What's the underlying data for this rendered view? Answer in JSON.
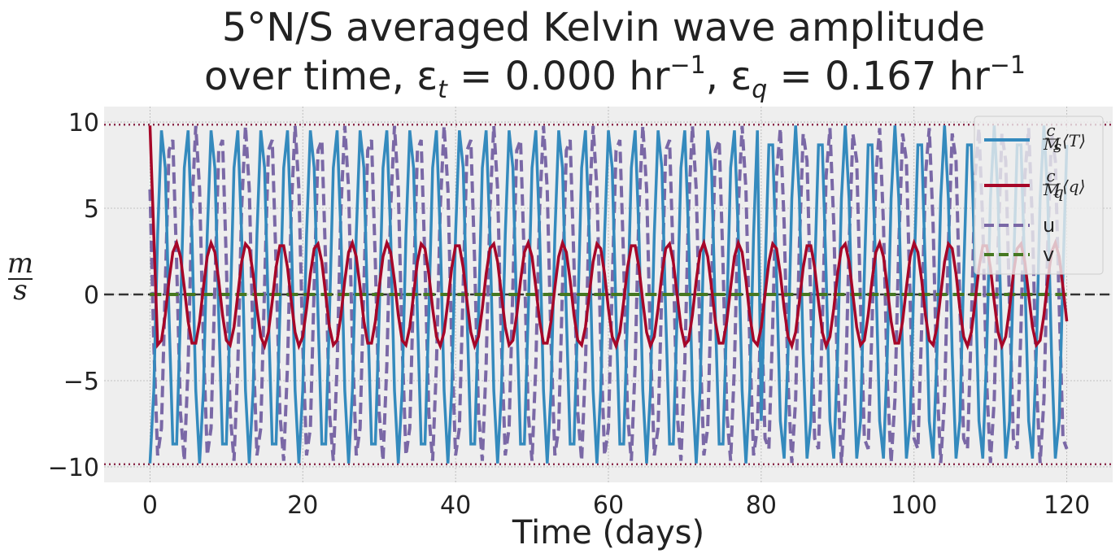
{
  "chart_data": {
    "type": "line",
    "title_line1": "5°N/S averaged Kelvin wave amplitude",
    "title_line2_prefix": "over time, ε",
    "title_eps_t_sub": "t",
    "title_eps_t_value": " = 0.000 hr",
    "title_eps_sep": ",  ε",
    "title_eps_q_sub": "q",
    "title_eps_q_value": " = 0.167 hr",
    "title_exp": "−1",
    "xlabel": "Time (days)",
    "ylabel_num": "m",
    "ylabel_den": "s",
    "xlim": [
      -6,
      126
    ],
    "ylim": [
      -10.9,
      10.9
    ],
    "xticks": [
      0,
      20,
      40,
      60,
      80,
      100,
      120
    ],
    "xtick_labels": [
      "0",
      "20",
      "40",
      "60",
      "80",
      "100",
      "120"
    ],
    "yticks": [
      -10,
      -5,
      0,
      5,
      10
    ],
    "ytick_labels": [
      "−10",
      "−5",
      "0",
      "5",
      "10"
    ],
    "grid": true,
    "legend_position": "top-right",
    "reference_lines": {
      "zero": 0,
      "upper_dotted": 9.85,
      "lower_dotted": -9.85,
      "zero_color": "#333333",
      "dotted_color": "#8b2a4a"
    },
    "series": [
      {
        "name": "c/Mₛ⟨T⟩",
        "color": "#348abd",
        "style": "solid",
        "amplitude": 9.8,
        "period_days": 3.25,
        "x_start": 0,
        "x_end": 120,
        "phase_note": "starts at -9.8, phase jump near day 80"
      },
      {
        "name": "c/M_q⟨q⟩",
        "color": "#a60628",
        "style": "solid",
        "amplitude": 3.0,
        "period_days": 4.6,
        "x_start": 0,
        "x_end": 120,
        "initial_value": 9.8,
        "final_value": -1.6
      },
      {
        "name": "u",
        "color": "#7a68a6",
        "style": "dashed",
        "amplitude": 9.8,
        "period_days": 3.25,
        "x_start": 0,
        "x_end": 120
      },
      {
        "name": "v",
        "color": "#467821",
        "style": "dashed",
        "constant_value": 0,
        "x_start": 0,
        "x_end": 120
      }
    ],
    "legend": [
      {
        "label_c": "c",
        "label_m": "M",
        "label_sub": "s",
        "label_var": "⟨T⟩",
        "color": "#348abd",
        "dash": false
      },
      {
        "label_c": "c",
        "label_m": "M",
        "label_sub": "q",
        "label_var": "⟨q⟩",
        "color": "#a60628",
        "dash": false
      },
      {
        "label": "u",
        "color": "#7a68a6",
        "dash": true
      },
      {
        "label": "v",
        "color": "#467821",
        "dash": true
      }
    ],
    "plot_background": "#eeeeee"
  }
}
